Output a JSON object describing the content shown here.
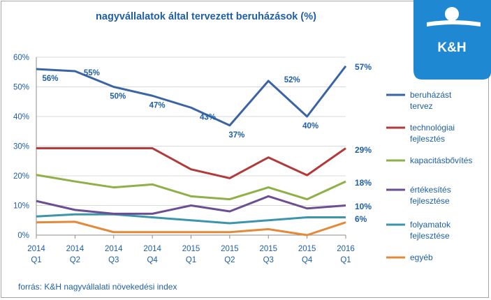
{
  "chart_data": {
    "type": "line",
    "title": "nagyvállalatok által tervezett beruházások (%)",
    "categories": [
      [
        "2014",
        "Q1"
      ],
      [
        "2014",
        "Q2"
      ],
      [
        "2014",
        "Q3"
      ],
      [
        "2014",
        "Q4"
      ],
      [
        "2015",
        "Q1"
      ],
      [
        "2015",
        "Q2"
      ],
      [
        "2015",
        "Q3"
      ],
      [
        "2015",
        "Q4"
      ],
      [
        "2016",
        "Q1"
      ]
    ],
    "ylim": [
      0,
      60
    ],
    "yticks": [
      "0%",
      "10%",
      "20%",
      "30%",
      "40%",
      "50%",
      "60%"
    ],
    "ytick_values": [
      0,
      10,
      20,
      30,
      40,
      50,
      60
    ],
    "series": [
      {
        "name": "beruházást tervez",
        "legend_lines": [
          "beruházást",
          "tervez"
        ],
        "color": "#3a64a4",
        "values": [
          56,
          55.3,
          50,
          47,
          43,
          37,
          52,
          40,
          57
        ],
        "labels": [
          "56%",
          "55%",
          "50%",
          "47%",
          "43%",
          "37%",
          "52%",
          "40%",
          "57%"
        ]
      },
      {
        "name": "technológiai fejlesztés",
        "legend_lines": [
          "technológiai",
          "fejlesztés"
        ],
        "color": "#b23a3a",
        "values": [
          29.3,
          29.3,
          29.3,
          29.3,
          22.2,
          19.2,
          26.2,
          20.2,
          29.3
        ],
        "end_label": "29%"
      },
      {
        "name": "kapacitásbővítés",
        "legend_lines": [
          "kapacitásbővítés"
        ],
        "color": "#8fb046",
        "values": [
          20.3,
          18.1,
          16.1,
          17.1,
          13.1,
          12.1,
          16.1,
          12.1,
          18.1
        ],
        "end_label": "18%"
      },
      {
        "name": "értékesítés fejlesztése",
        "legend_lines": [
          "értékesítés",
          "fejlesztése"
        ],
        "color": "#6c4e93",
        "values": [
          11.5,
          8.5,
          7.2,
          7.2,
          10.0,
          8.0,
          13.1,
          9.0,
          10.0
        ],
        "end_label": "10%"
      },
      {
        "name": "folyamatok fejlesztése",
        "legend_lines": [
          "folyamatok",
          "fejlesztése"
        ],
        "color": "#3d95ab",
        "values": [
          6.3,
          7.0,
          7.0,
          6.0,
          5.0,
          4.0,
          5.0,
          6.0,
          6.0
        ],
        "end_label": "6%"
      },
      {
        "name": "egyéb",
        "legend_lines": [
          "egyéb"
        ],
        "color": "#e3893a",
        "values": [
          4.3,
          4.5,
          1.0,
          1.0,
          1.0,
          1.0,
          2.0,
          0.0,
          4.3
        ]
      }
    ],
    "source": "forrás: K&H nagyvállalati növekedési index"
  },
  "logo": {
    "text": "K&H",
    "color": "#1e88d2"
  }
}
